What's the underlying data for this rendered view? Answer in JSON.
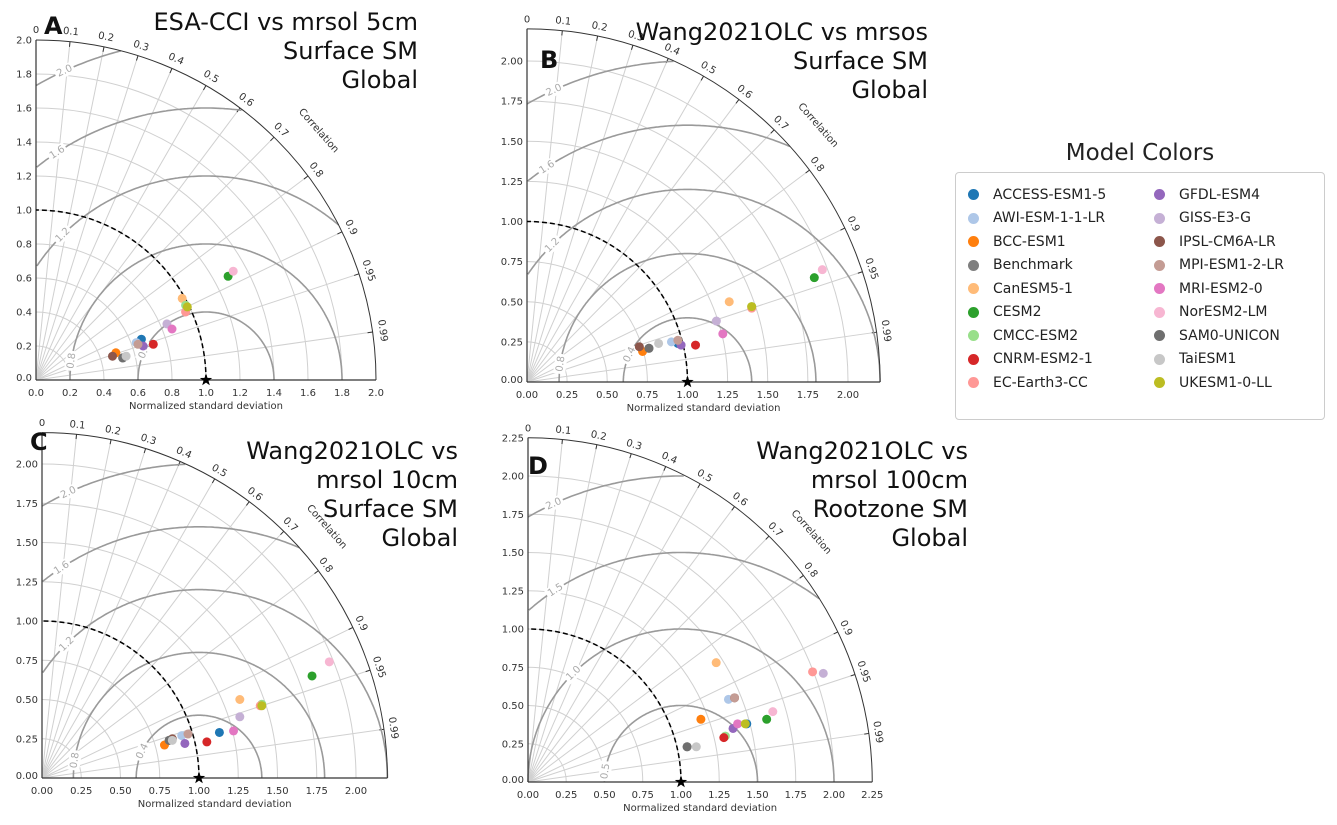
{
  "legend": {
    "title": "Model Colors",
    "models": [
      {
        "name": "ACCESS-ESM1-5",
        "color": "#1f77b4"
      },
      {
        "name": "AWI-ESM-1-1-LR",
        "color": "#aec7e8"
      },
      {
        "name": "BCC-ESM1",
        "color": "#ff7f0e"
      },
      {
        "name": "Benchmark",
        "color": "#7f7f7f"
      },
      {
        "name": "CanESM5-1",
        "color": "#ffbb78"
      },
      {
        "name": "CESM2",
        "color": "#2ca02c"
      },
      {
        "name": "CMCC-ESM2",
        "color": "#98df8a"
      },
      {
        "name": "CNRM-ESM2-1",
        "color": "#d62728"
      },
      {
        "name": "EC-Earth3-CC",
        "color": "#ff9896"
      },
      {
        "name": "GFDL-ESM4",
        "color": "#9467bd"
      },
      {
        "name": "GISS-E3-G",
        "color": "#c5b0d5"
      },
      {
        "name": "IPSL-CM6A-LR",
        "color": "#8c564b"
      },
      {
        "name": "MPI-ESM1-2-LR",
        "color": "#c49c94"
      },
      {
        "name": "MRI-ESM2-0",
        "color": "#e377c2"
      },
      {
        "name": "NorESM2-LM",
        "color": "#f7b6d2"
      },
      {
        "name": "SAM0-UNICON",
        "color": "#6f6f6f"
      },
      {
        "name": "TaiESM1",
        "color": "#c7c7c7"
      },
      {
        "name": "UKESM1-0-LL",
        "color": "#bcbd22"
      }
    ]
  },
  "chart_data": [
    {
      "type": "scatter",
      "subtype": "taylor-diagram",
      "panel": "A",
      "title": [
        "ESA-CCI vs mrsol 5cm",
        "Surface SM",
        "Global"
      ],
      "xlabel": "Normalized standard deviation",
      "corr_label": "Correlation",
      "std_max": 2.0,
      "std_ticks": [
        "0.0",
        "0.2",
        "0.4",
        "0.6",
        "0.8",
        "1.0",
        "1.2",
        "1.4",
        "1.6",
        "1.8",
        "2.0"
      ],
      "corr_ticks": [
        "0",
        "0.1",
        "0.2",
        "0.3",
        "0.4",
        "0.5",
        "0.6",
        "0.7",
        "0.8",
        "0.9",
        "0.95",
        "0.99"
      ],
      "rms_levels": [
        "0.4",
        "0.8",
        "1.2",
        "1.6",
        "2.0"
      ],
      "reference": {
        "std": 1.0,
        "corr": 1.0
      },
      "points": {
        "ACCESS-ESM1-5": [
          0.62,
          0.24
        ],
        "AWI-ESM-1-1-LR": [
          0.59,
          0.22
        ],
        "BCC-ESM1": [
          0.47,
          0.16
        ],
        "Benchmark": [
          0.51,
          0.13
        ],
        "CanESM5-1": [
          0.86,
          0.48
        ],
        "CESM2": [
          1.13,
          0.61
        ],
        "CMCC-ESM2": [
          0.88,
          0.44
        ],
        "CNRM-ESM2-1": [
          0.69,
          0.21
        ],
        "EC-Earth3-CC": [
          0.88,
          0.4
        ],
        "GFDL-ESM4": [
          0.63,
          0.2
        ],
        "GISS-E3-G": [
          0.77,
          0.33
        ],
        "IPSL-CM6A-LR": [
          0.45,
          0.14
        ],
        "MPI-ESM1-2-LR": [
          0.6,
          0.21
        ],
        "MRI-ESM2-0": [
          0.8,
          0.3
        ],
        "NorESM2-LM": [
          1.16,
          0.64
        ],
        "SAM0-UNICON": [
          0.51,
          0.13
        ],
        "TaiESM1": [
          0.53,
          0.14
        ],
        "UKESM1-0-LL": [
          0.89,
          0.43
        ]
      }
    },
    {
      "type": "scatter",
      "subtype": "taylor-diagram",
      "panel": "B",
      "title": [
        "Wang2021OLC vs mrsos",
        "Surface SM",
        "Global"
      ],
      "xlabel": "Normalized standard deviation",
      "corr_label": "Correlation",
      "std_max": 2.2,
      "std_ticks": [
        "0.00",
        "0.25",
        "0.50",
        "0.75",
        "1.00",
        "1.25",
        "1.50",
        "1.75",
        "2.00"
      ],
      "corr_ticks": [
        "0",
        "0.1",
        "0.2",
        "0.3",
        "0.4",
        "0.5",
        "0.6",
        "0.7",
        "0.8",
        "0.9",
        "0.95",
        "0.99"
      ],
      "rms_levels": [
        "0.4",
        "0.8",
        "1.2",
        "1.6",
        "2.0"
      ],
      "reference": {
        "std": 1.0,
        "corr": 1.0
      },
      "points": {
        "ACCESS-ESM1-5": [
          0.94,
          0.24
        ],
        "AWI-ESM-1-1-LR": [
          0.9,
          0.25
        ],
        "BCC-ESM1": [
          0.72,
          0.19
        ],
        "Benchmark": [
          0.76,
          0.21
        ],
        "CanESM5-1": [
          1.26,
          0.5
        ],
        "CESM2": [
          1.79,
          0.65
        ],
        "CMCC-ESM2": [
          1.4,
          0.47
        ],
        "CNRM-ESM2-1": [
          1.05,
          0.23
        ],
        "EC-Earth3-CC": [
          1.4,
          0.46
        ],
        "GFDL-ESM4": [
          0.96,
          0.23
        ],
        "GISS-E3-G": [
          1.18,
          0.38
        ],
        "IPSL-CM6A-LR": [
          0.7,
          0.22
        ],
        "MPI-ESM1-2-LR": [
          0.94,
          0.26
        ],
        "MRI-ESM2-0": [
          1.22,
          0.3
        ],
        "NorESM2-LM": [
          1.84,
          0.7
        ],
        "SAM0-UNICON": [
          0.76,
          0.21
        ],
        "TaiESM1": [
          0.82,
          0.24
        ],
        "UKESM1-0-LL": [
          1.4,
          0.47
        ]
      }
    },
    {
      "type": "scatter",
      "subtype": "taylor-diagram",
      "panel": "C",
      "title": [
        "Wang2021OLC vs",
        "mrsol 10cm",
        "Surface SM",
        "Global"
      ],
      "xlabel": "Normalized standard deviation",
      "corr_label": "Correlation",
      "std_max": 2.2,
      "std_ticks": [
        "0.00",
        "0.25",
        "0.50",
        "0.75",
        "1.00",
        "1.25",
        "1.50",
        "1.75",
        "2.00"
      ],
      "corr_ticks": [
        "0",
        "0.1",
        "0.2",
        "0.3",
        "0.4",
        "0.5",
        "0.6",
        "0.7",
        "0.8",
        "0.9",
        "0.95",
        "0.99"
      ],
      "rms_levels": [
        "0.4",
        "0.8",
        "1.2",
        "1.6",
        "2.0"
      ],
      "reference": {
        "std": 1.0,
        "corr": 1.0
      },
      "points": {
        "ACCESS-ESM1-5": [
          1.13,
          0.29
        ],
        "AWI-ESM-1-1-LR": [
          0.89,
          0.27
        ],
        "BCC-ESM1": [
          0.78,
          0.21
        ],
        "Benchmark": [
          0.81,
          0.24
        ],
        "CanESM5-1": [
          1.26,
          0.5
        ],
        "CESM2": [
          1.72,
          0.65
        ],
        "CMCC-ESM2": [
          1.4,
          0.47
        ],
        "CNRM-ESM2-1": [
          1.05,
          0.23
        ],
        "EC-Earth3-CC": [
          1.39,
          0.46
        ],
        "GFDL-ESM4": [
          0.91,
          0.22
        ],
        "GISS-E3-G": [
          1.26,
          0.39
        ],
        "IPSL-CM6A-LR": [
          0.83,
          0.25
        ],
        "MPI-ESM1-2-LR": [
          0.93,
          0.28
        ],
        "MRI-ESM2-0": [
          1.22,
          0.3
        ],
        "NorESM2-LM": [
          1.83,
          0.74
        ],
        "SAM0-UNICON": [
          0.81,
          0.24
        ],
        "TaiESM1": [
          0.83,
          0.24
        ],
        "UKESM1-0-LL": [
          1.4,
          0.46
        ]
      }
    },
    {
      "type": "scatter",
      "subtype": "taylor-diagram",
      "panel": "D",
      "title": [
        "Wang2021OLC vs",
        "mrsol 100cm",
        "Rootzone SM",
        "Global"
      ],
      "xlabel": "Normalized standard deviation",
      "corr_label": "Correlation",
      "std_max": 2.25,
      "std_ticks": [
        "0.00",
        "0.25",
        "0.50",
        "0.75",
        "1.00",
        "1.25",
        "1.50",
        "1.75",
        "2.00",
        "2.25"
      ],
      "corr_ticks": [
        "0",
        "0.1",
        "0.2",
        "0.3",
        "0.4",
        "0.5",
        "0.6",
        "0.7",
        "0.8",
        "0.9",
        "0.95",
        "0.99"
      ],
      "rms_levels": [
        "0.5",
        "1.0",
        "1.5",
        "2.0"
      ],
      "reference": {
        "std": 1.0,
        "corr": 1.0
      },
      "points": {
        "ACCESS-ESM1-5": [
          1.43,
          0.38
        ],
        "AWI-ESM-1-1-LR": [
          1.31,
          0.54
        ],
        "BCC-ESM1": [
          1.13,
          0.41
        ],
        "Benchmark": [
          1.04,
          0.23
        ],
        "CanESM5-1": [
          1.23,
          0.78
        ],
        "CESM2": [
          1.56,
          0.41
        ],
        "CMCC-ESM2": [
          1.29,
          0.3
        ],
        "CNRM-ESM2-1": [
          1.28,
          0.29
        ],
        "EC-Earth3-CC": [
          1.86,
          0.72
        ],
        "GFDL-ESM4": [
          1.34,
          0.35
        ],
        "GISS-E3-G": [
          1.93,
          0.71
        ],
        "IPSL-CM6A-LR": [
          1.35,
          0.55
        ],
        "MPI-ESM1-2-LR": [
          1.35,
          0.55
        ],
        "MRI-ESM2-0": [
          1.37,
          0.38
        ],
        "NorESM2-LM": [
          1.6,
          0.46
        ],
        "SAM0-UNICON": [
          1.04,
          0.23
        ],
        "TaiESM1": [
          1.1,
          0.23
        ],
        "UKESM1-0-LL": [
          1.42,
          0.38
        ]
      }
    }
  ]
}
